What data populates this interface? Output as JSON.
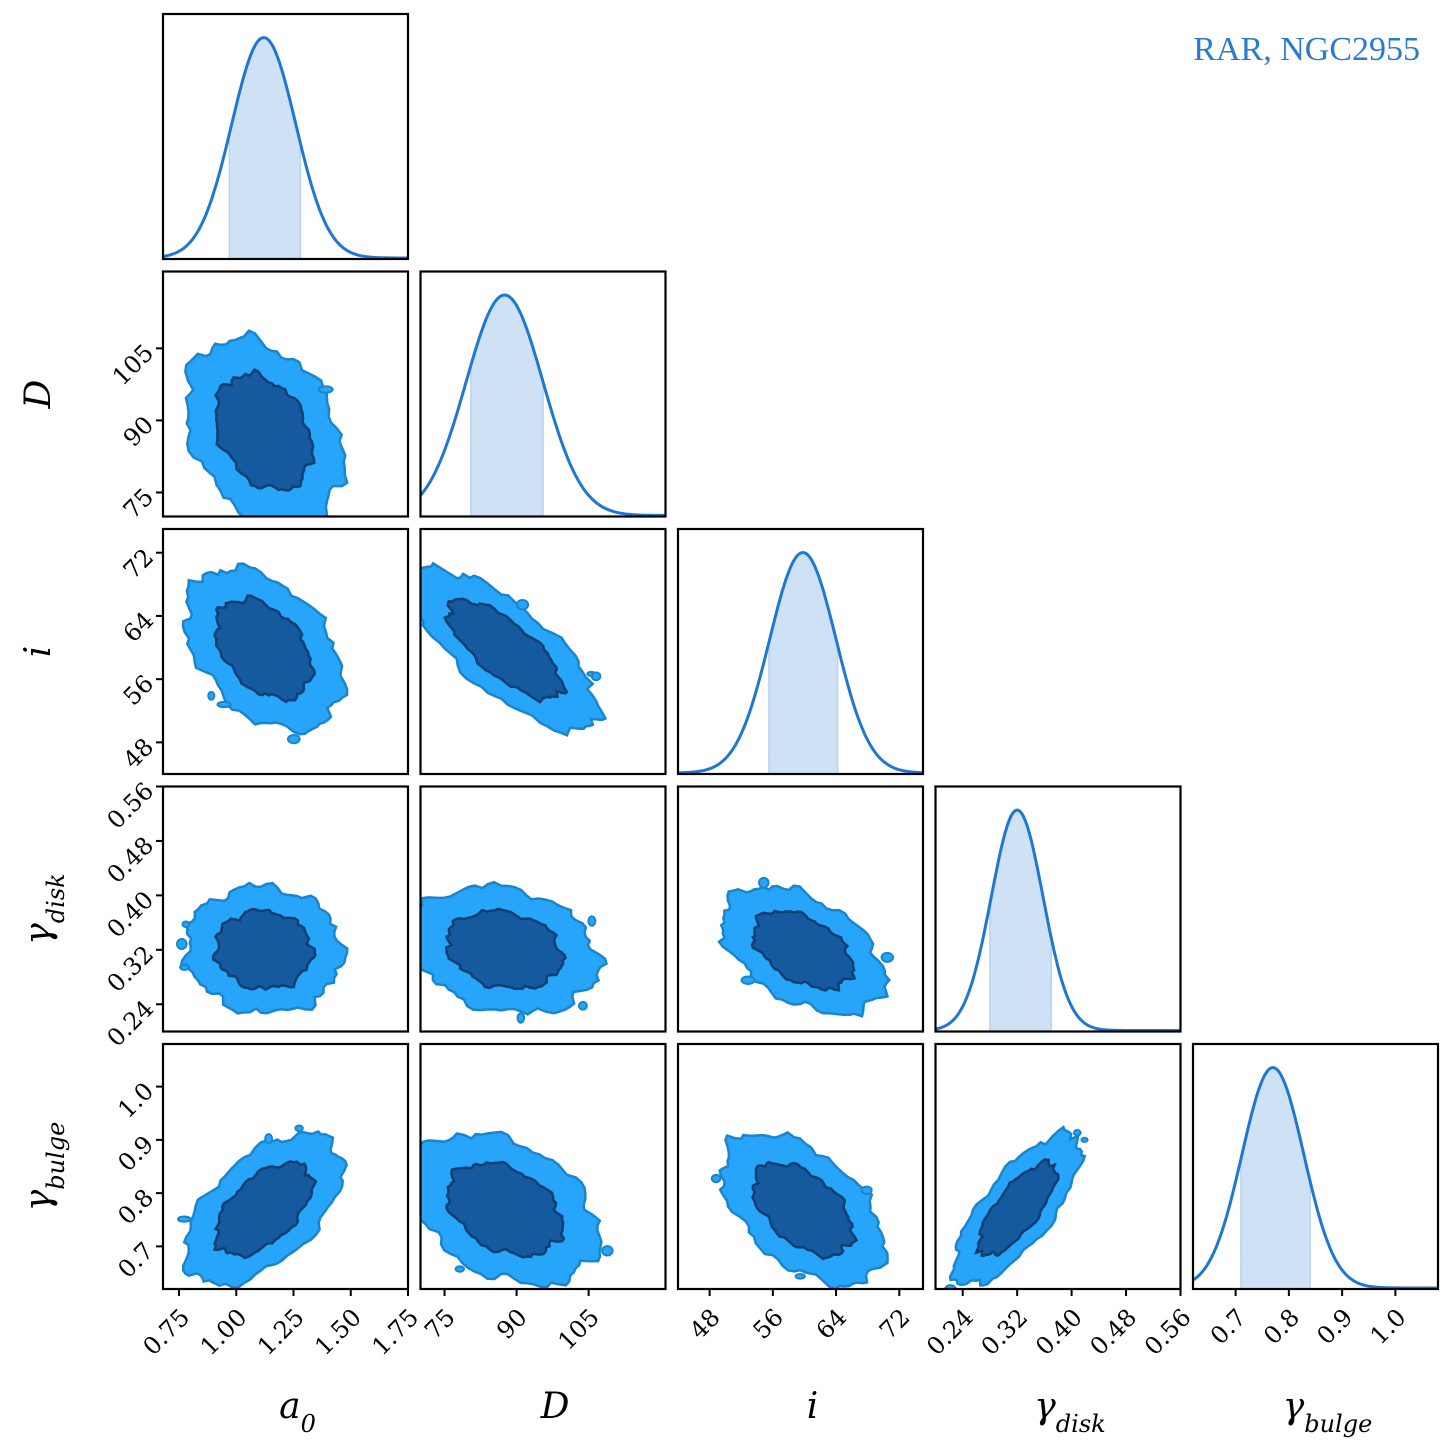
{
  "colors": {
    "line": "#1f77d4",
    "band": "#cfe2f5",
    "outer": "#27a5fa",
    "inner": "#155a9e",
    "outer_edge": "#1a85cc",
    "inner_edge": "#0d3f73",
    "title": "#2a7ad0"
  },
  "chart_data": {
    "type": "corner",
    "title": "RAR, NGC2955",
    "parameters": [
      {
        "key": "a0",
        "label_base": "a",
        "label_sub": "0",
        "range": [
          0.68,
          1.75
        ],
        "ticks": [
          0.75,
          1.0,
          1.25,
          1.5,
          1.75
        ],
        "tick_labels": [
          "0.75",
          "1.00",
          "1.25",
          "1.50",
          "1.75"
        ],
        "mean": 1.12,
        "sd": 0.14,
        "interval": [
          0.97,
          1.28
        ]
      },
      {
        "key": "D",
        "label_base": "D",
        "label_sub": "",
        "range": [
          70,
          121
        ],
        "ticks": [
          75,
          90,
          105
        ],
        "tick_labels": [
          "75",
          "90",
          "105"
        ],
        "mean": 87.5,
        "sd": 8.0,
        "interval": [
          80.5,
          95.5
        ]
      },
      {
        "key": "i",
        "label_base": "i",
        "label_sub": "",
        "range": [
          44,
          75
        ],
        "ticks": [
          48,
          56,
          64,
          72
        ],
        "tick_labels": [
          "48",
          "56",
          "64",
          "72"
        ],
        "mean": 59.8,
        "sd": 4.2,
        "interval": [
          55.5,
          64.2
        ]
      },
      {
        "key": "gdisk",
        "label_base": "γ",
        "label_sub": "disk",
        "range": [
          0.2,
          0.56
        ],
        "ticks": [
          0.24,
          0.32,
          0.4,
          0.48,
          0.56
        ],
        "tick_labels": [
          "0.24",
          "0.32",
          "0.40",
          "0.48",
          "0.56"
        ],
        "mean": 0.32,
        "sd": 0.038,
        "interval": [
          0.28,
          0.37
        ]
      },
      {
        "key": "gbulge",
        "label_base": "γ",
        "label_sub": "bulge",
        "range": [
          0.62,
          1.08
        ],
        "ticks": [
          0.7,
          0.8,
          0.9,
          1.0
        ],
        "tick_labels": [
          "0.7",
          "0.8",
          "0.9",
          "1.0"
        ],
        "mean": 0.77,
        "sd": 0.058,
        "interval": [
          0.71,
          0.84
        ]
      }
    ],
    "correlations": [
      [
        1.0,
        -0.3,
        -0.4,
        -0.05,
        0.55
      ],
      [
        -0.3,
        1.0,
        -0.75,
        -0.2,
        -0.35
      ],
      [
        -0.4,
        -0.75,
        1.0,
        -0.45,
        -0.5
      ],
      [
        -0.05,
        -0.2,
        -0.45,
        1.0,
        0.75
      ],
      [
        0.55,
        -0.35,
        -0.5,
        0.75,
        1.0
      ]
    ]
  }
}
